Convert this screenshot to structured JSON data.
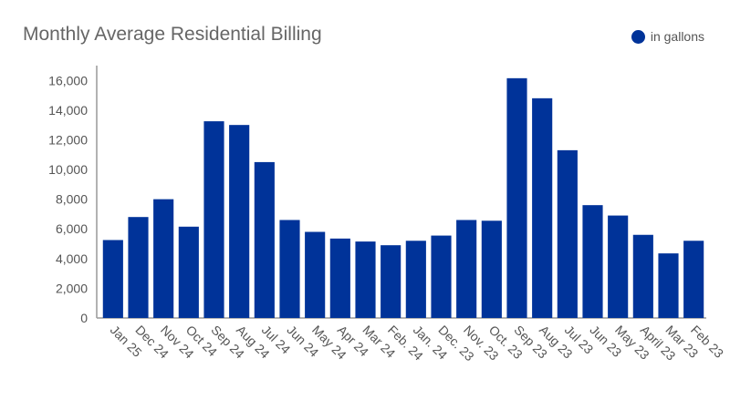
{
  "chart_data": {
    "type": "bar",
    "title": "Monthly Average Residential Billing",
    "xlabel": "",
    "ylabel": "",
    "categories": [
      "Jan 25",
      "Dec 24",
      "Nov 24",
      "Oct 24",
      "Sep 24",
      "Aug 24",
      "Jul 24",
      "Jun 24",
      "May 24",
      "Apr 24",
      "Mar 24",
      "Feb. 24",
      "Jan. 24",
      "Dec. 23",
      "Nov. 23",
      "Oct. 23",
      "Sep 23",
      "Aug 23",
      "Jul 23",
      "Jun 23",
      "May 23",
      "April 23",
      "Mar 23",
      "Feb 23"
    ],
    "series": [
      {
        "name": "in gallons",
        "color": "#003399",
        "values": [
          5250,
          6800,
          8000,
          6150,
          13250,
          13000,
          10500,
          6600,
          5800,
          5350,
          5150,
          4900,
          5200,
          5550,
          6600,
          6550,
          16150,
          14800,
          11300,
          7600,
          6900,
          5600,
          4350,
          5200
        ]
      }
    ],
    "ylim": [
      0,
      17000
    ],
    "yticks": [
      0,
      2000,
      4000,
      6000,
      8000,
      10000,
      12000,
      14000,
      16000
    ],
    "grid": false,
    "legend_position": "top-right"
  }
}
